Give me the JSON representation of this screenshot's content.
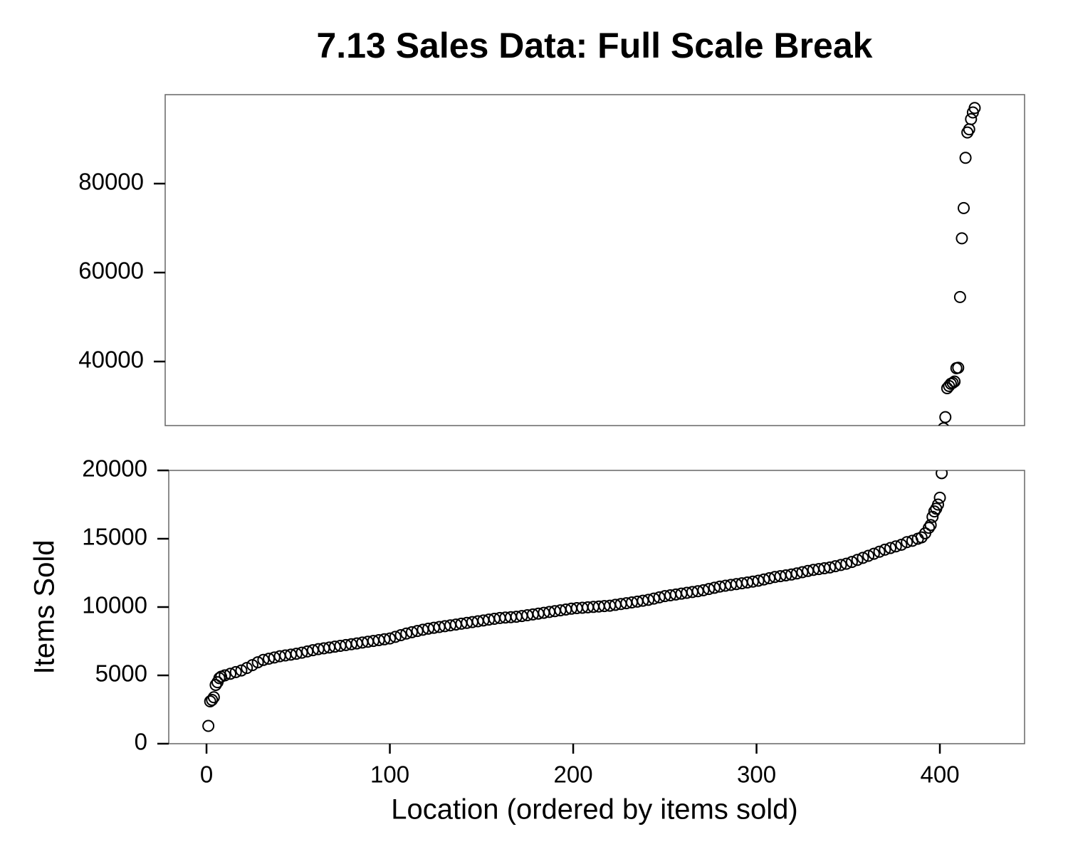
{
  "chart_data": {
    "type": "scatter",
    "title": "7.13 Sales Data: Full Scale Break",
    "xlabel": "Location (ordered by items sold)",
    "ylabel": "Items Sold",
    "color": "#000000",
    "xlim": [
      -20.6,
      446.2
    ],
    "xticks": [
      0,
      100,
      200,
      300,
      400
    ],
    "panels": [
      {
        "ylim": [
          25600,
          100000
        ],
        "yticks": [
          40000,
          60000,
          80000
        ]
      },
      {
        "ylim": [
          0,
          20000
        ],
        "yticks": [
          0,
          5000,
          10000,
          15000,
          20000
        ]
      }
    ],
    "x": [
      1,
      2,
      3,
      4,
      5,
      6,
      7,
      8,
      10,
      13,
      16,
      19,
      22,
      25,
      28,
      31,
      34,
      37,
      40,
      43,
      46,
      49,
      52,
      55,
      58,
      61,
      64,
      67,
      70,
      73,
      76,
      79,
      82,
      85,
      88,
      91,
      94,
      97,
      100,
      103,
      106,
      109,
      112,
      115,
      118,
      121,
      124,
      127,
      130,
      133,
      136,
      139,
      142,
      145,
      148,
      151,
      154,
      157,
      160,
      163,
      166,
      169,
      172,
      175,
      178,
      181,
      184,
      187,
      190,
      193,
      196,
      199,
      202,
      205,
      208,
      211,
      214,
      217,
      220,
      223,
      226,
      229,
      232,
      235,
      238,
      241,
      244,
      247,
      250,
      253,
      256,
      259,
      262,
      265,
      268,
      271,
      274,
      277,
      280,
      283,
      286,
      289,
      292,
      295,
      298,
      301,
      304,
      307,
      310,
      313,
      316,
      319,
      322,
      325,
      328,
      331,
      334,
      337,
      340,
      343,
      346,
      349,
      352,
      355,
      358,
      361,
      364,
      367,
      370,
      373,
      376,
      379,
      382,
      385,
      388,
      390,
      392,
      394,
      395,
      396,
      397,
      398,
      399,
      400,
      401,
      402,
      403,
      404,
      405,
      406,
      407,
      408,
      409,
      410,
      411,
      412,
      413,
      414,
      415,
      416,
      417,
      418,
      419
    ],
    "values": [
      1300,
      3100,
      3200,
      3400,
      4300,
      4500,
      4800,
      4900,
      5000,
      5120,
      5240,
      5360,
      5540,
      5750,
      5960,
      6130,
      6220,
      6310,
      6400,
      6460,
      6520,
      6580,
      6660,
      6750,
      6840,
      6920,
      6980,
      7040,
      7100,
      7160,
      7220,
      7280,
      7340,
      7400,
      7460,
      7520,
      7580,
      7640,
      7700,
      7820,
      7940,
      8060,
      8160,
      8250,
      8340,
      8420,
      8480,
      8540,
      8600,
      8660,
      8720,
      8780,
      8840,
      8900,
      8960,
      9020,
      9080,
      9140,
      9200,
      9230,
      9260,
      9290,
      9340,
      9400,
      9460,
      9520,
      9580,
      9640,
      9700,
      9760,
      9820,
      9880,
      9920,
      9950,
      9980,
      10010,
      10040,
      10070,
      10100,
      10160,
      10220,
      10280,
      10340,
      10400,
      10460,
      10530,
      10620,
      10710,
      10800,
      10860,
      10920,
      10980,
      11040,
      11100,
      11160,
      11230,
      11320,
      11410,
      11500,
      11560,
      11620,
      11680,
      11740,
      11800,
      11860,
      11930,
      12020,
      12110,
      12200,
      12260,
      12320,
      12380,
      12460,
      12550,
      12640,
      12720,
      12780,
      12840,
      12900,
      12990,
      13080,
      13170,
      13300,
      13450,
      13600,
      13750,
      13900,
      14050,
      14200,
      14320,
      14440,
      14560,
      14750,
      14850,
      15000,
      15100,
      15400,
      15800,
      16000,
      16600,
      17000,
      17200,
      17500,
      18000,
      19800,
      25000,
      27500,
      34000,
      34500,
      35000,
      35200,
      35500,
      38500,
      38600,
      54500,
      67700,
      74500,
      85800,
      91500,
      92200,
      94500,
      96000,
      97000
    ]
  }
}
